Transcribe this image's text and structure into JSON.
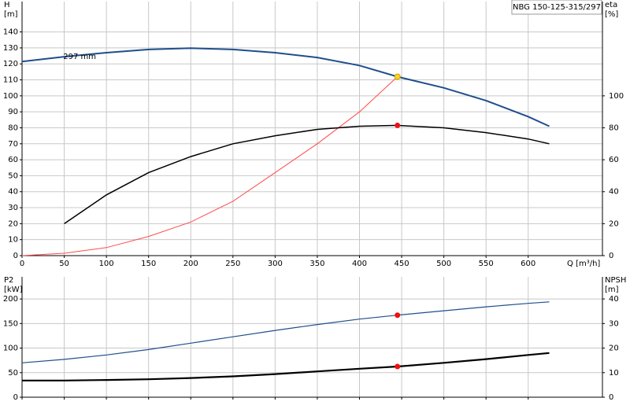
{
  "chart_data": [
    {
      "type": "line",
      "title": "NBG 150-125-315/297",
      "y_label": [
        "H",
        "[m]"
      ],
      "y2_label": [
        "eta",
        "[%]"
      ],
      "x_label": "Q [m³/h]",
      "annotation": {
        "text": "297 mm",
        "x": 60,
        "y": 124
      },
      "xlim": [
        0,
        688
      ],
      "xticks": [
        0,
        50,
        100,
        150,
        200,
        250,
        300,
        350,
        400,
        450,
        500,
        550,
        600
      ],
      "ylim": [
        0,
        159
      ],
      "yticks": [
        0,
        10,
        20,
        30,
        40,
        50,
        60,
        70,
        80,
        90,
        100,
        110,
        120,
        130,
        140
      ],
      "y2lim": [
        0,
        159
      ],
      "y2ticks": [
        0,
        20,
        40,
        60,
        80,
        100
      ],
      "grid": true,
      "xtick_labels": true,
      "series": [
        {
          "color": "#1f4e8c",
          "linewidth": 2,
          "x": [
            0,
            50,
            100,
            150,
            200,
            250,
            300,
            350,
            400,
            445,
            500,
            550,
            600,
            625
          ],
          "values": [
            121.5,
            124.5,
            127,
            129,
            129.8,
            129,
            127,
            124,
            119,
            112,
            105,
            97,
            87,
            81
          ]
        },
        {
          "color": "#ff4a4a",
          "linewidth": 1,
          "x": [
            0,
            50,
            100,
            150,
            200,
            250,
            300,
            350,
            400,
            445
          ],
          "values": [
            0,
            1.5,
            5,
            12,
            21,
            34,
            52,
            70,
            90,
            112
          ]
        },
        {
          "color": "#000000",
          "linewidth": 1.5,
          "axis": "y2",
          "x": [
            50,
            100,
            150,
            200,
            250,
            300,
            350,
            400,
            445,
            500,
            550,
            600,
            625
          ],
          "values": [
            20,
            38,
            52,
            62,
            70,
            75,
            79,
            81,
            81.5,
            80,
            77,
            73,
            70
          ]
        }
      ],
      "points": [
        {
          "x": 445,
          "y": 112,
          "color": "#ffd21f"
        },
        {
          "x": 445,
          "y": 81.5,
          "color": "#ee1111",
          "axis": "y2"
        }
      ]
    },
    {
      "type": "line",
      "y_label": [
        "P2",
        "[kW]"
      ],
      "y2_label": [
        "NPSH",
        "[m]"
      ],
      "xlim": [
        0,
        688
      ],
      "xticks": [
        0,
        50,
        100,
        150,
        200,
        250,
        300,
        350,
        400,
        450,
        500,
        550,
        600
      ],
      "ylim": [
        0,
        245
      ],
      "yticks": [
        0,
        50,
        100,
        150,
        200
      ],
      "y2lim": [
        0,
        49
      ],
      "y2ticks": [
        0,
        10,
        20,
        30,
        40
      ],
      "grid": true,
      "xtick_labels": false,
      "series": [
        {
          "color": "#1f4e8c",
          "linewidth": 1.2,
          "x": [
            0,
            50,
            100,
            150,
            200,
            250,
            300,
            350,
            400,
            445,
            500,
            550,
            600,
            625
          ],
          "values": [
            70,
            77,
            86,
            97,
            110,
            123,
            136,
            148,
            159,
            167,
            176,
            184,
            191,
            194
          ]
        },
        {
          "color": "#000000",
          "linewidth": 2.2,
          "axis": "y2",
          "x": [
            0,
            50,
            100,
            150,
            200,
            250,
            300,
            350,
            400,
            445,
            500,
            550,
            600,
            625
          ],
          "values": [
            6.8,
            6.8,
            7,
            7.3,
            7.8,
            8.5,
            9.4,
            10.5,
            11.6,
            12.5,
            14,
            15.5,
            17.2,
            18
          ]
        }
      ],
      "points": [
        {
          "x": 445,
          "y": 167,
          "color": "#ee1111"
        },
        {
          "x": 445,
          "y": 12.5,
          "color": "#ee1111",
          "axis": "y2"
        }
      ]
    }
  ]
}
